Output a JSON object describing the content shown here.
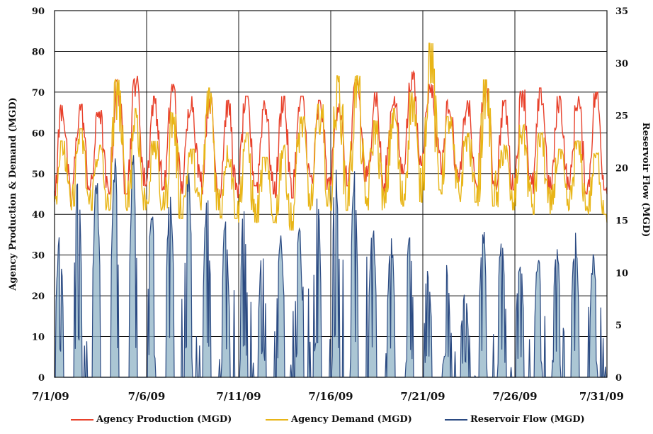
{
  "chart_data": {
    "type": "line",
    "ylabel_left": "Agency Production & Demand (MGD)",
    "ylabel_right": "Reservoir Flow (MGD)",
    "ylim_left": [
      0,
      90
    ],
    "ylim_right": [
      0,
      35
    ],
    "yticks_left": [
      "0",
      "10",
      "20",
      "30",
      "40",
      "50",
      "60",
      "70",
      "80",
      "90"
    ],
    "yticks_right": [
      "0",
      "5",
      "10",
      "15",
      "20",
      "25",
      "30",
      "35"
    ],
    "x_range_days": [
      0,
      30
    ],
    "xticks": [
      {
        "day": 0,
        "label": "7/1/09"
      },
      {
        "day": 5,
        "label": "7/6/09"
      },
      {
        "day": 10,
        "label": "7/11/09"
      },
      {
        "day": 15,
        "label": "7/16/09"
      },
      {
        "day": 20,
        "label": "7/21/09"
      },
      {
        "day": 25,
        "label": "7/26/09"
      },
      {
        "day": 30,
        "label": "7/31/09"
      }
    ],
    "grid": true,
    "legend_position": "bottom",
    "series": [
      {
        "name": "Agency Production (MGD)",
        "axis": "left",
        "color": "#e8412b",
        "daily_min": [
          42,
          46,
          45,
          45,
          47,
          46,
          45,
          48,
          45,
          44,
          47,
          45,
          44,
          48,
          46,
          47,
          48,
          45,
          50,
          52,
          55,
          48,
          46,
          47,
          46,
          46,
          45,
          46,
          45,
          46,
          45
        ],
        "daily_max": [
          67,
          67,
          66,
          73,
          74,
          69,
          72,
          69,
          69,
          68,
          69,
          68,
          69,
          69,
          68,
          68,
          73,
          70,
          69,
          75,
          72,
          68,
          68,
          73,
          68,
          71,
          71,
          69,
          69,
          70,
          69
        ]
      },
      {
        "name": "Agency Demand (MGD)",
        "axis": "left",
        "color": "#e8b517",
        "daily_min": [
          41,
          42,
          41,
          41,
          41,
          41,
          39,
          41,
          41,
          39,
          38,
          38,
          36,
          41,
          42,
          41,
          42,
          41,
          42,
          43,
          46,
          45,
          43,
          42,
          41,
          42,
          40,
          41,
          41,
          40,
          38
        ],
        "daily_max": [
          58,
          61,
          57,
          73,
          66,
          58,
          65,
          56,
          71,
          57,
          60,
          54,
          57,
          64,
          67,
          74,
          74,
          63,
          66,
          70,
          82,
          64,
          60,
          73,
          57,
          62,
          60,
          56,
          58,
          55,
          58
        ]
      },
      {
        "name": "Reservoir Flow (MGD)",
        "axis": "right",
        "color": "#2b4a82",
        "daily_peak": [
          14,
          20,
          20,
          22,
          22,
          17,
          19,
          20,
          18,
          15,
          17,
          13,
          14,
          15,
          19,
          21,
          20,
          15,
          14,
          14,
          11,
          12,
          9,
          15,
          14,
          12,
          12,
          13,
          14,
          12,
          11
        ]
      }
    ]
  }
}
